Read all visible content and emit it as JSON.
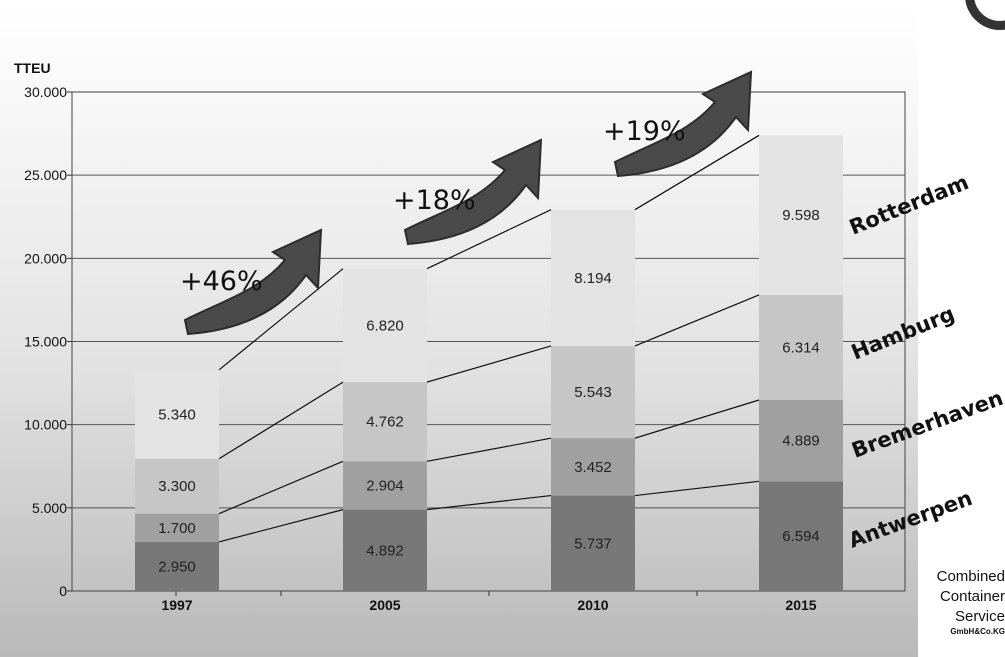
{
  "chart_data": {
    "type": "bar",
    "stacked": true,
    "ylabel": "TTEU",
    "ylim": [
      0,
      30000
    ],
    "yticks": [
      "0",
      "5.000",
      "10.000",
      "15.000",
      "20.000",
      "25.000",
      "30.000"
    ],
    "categories": [
      "1997",
      "2005",
      "2010",
      "2015"
    ],
    "series": [
      {
        "name": "Antwerpen",
        "values": [
          2950,
          4892,
          5737,
          6594
        ],
        "labels": [
          "2.950",
          "4.892",
          "5.737",
          "6.594"
        ],
        "color": "#787878"
      },
      {
        "name": "Bremerhaven",
        "values": [
          1700,
          2904,
          3452,
          4889
        ],
        "labels": [
          "1.700",
          "2.904",
          "3.452",
          "4.889"
        ],
        "color": "#a0a0a0"
      },
      {
        "name": "Hamburg",
        "values": [
          3300,
          4762,
          5543,
          6314
        ],
        "labels": [
          "3.300",
          "4.762",
          "5.543",
          "6.314"
        ],
        "color": "#c6c6c6"
      },
      {
        "name": "Rotterdam",
        "values": [
          5340,
          6820,
          8194,
          9598
        ],
        "labels": [
          "5.340",
          "6.820",
          "8.194",
          "9.598"
        ],
        "color": "#e3e3e3"
      }
    ],
    "growth_annotations": [
      "+46%",
      "+18%",
      "+19%"
    ],
    "grid": true
  },
  "company": {
    "line1": "Combined",
    "line2": "Container",
    "line3": "Service",
    "line4": "GmbH&Co.KG"
  },
  "colors": {
    "arrow": "#4a4a4a",
    "axis": "#444444"
  }
}
